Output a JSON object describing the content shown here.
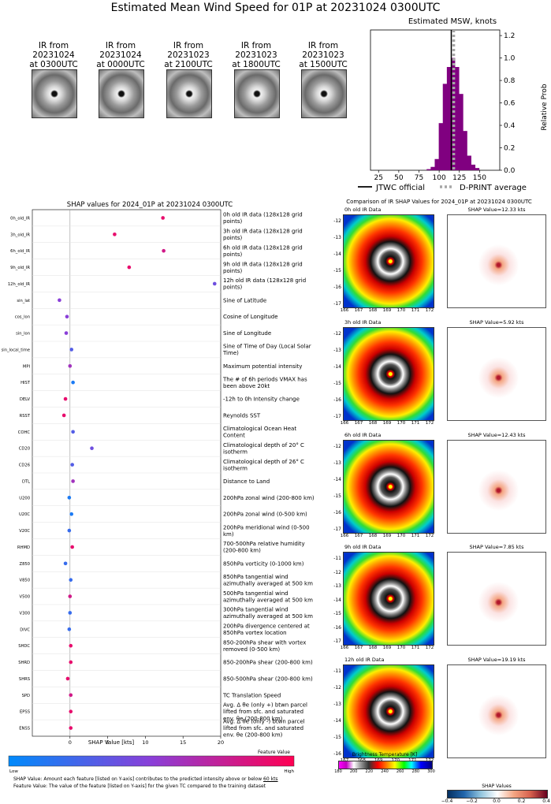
{
  "title": "Estimated Mean Wind Speed for 01P at 20231024 0300UTC",
  "ir_thumbs": [
    {
      "line1": "IR from",
      "line2": "20231024",
      "line3": "at 0300UTC"
    },
    {
      "line1": "IR from",
      "line2": "20231024",
      "line3": "at 0000UTC"
    },
    {
      "line1": "IR from",
      "line2": "20231023",
      "line3": "at 2100UTC"
    },
    {
      "line1": "IR from",
      "line2": "20231023",
      "line3": "at 1800UTC"
    },
    {
      "line1": "IR from",
      "line2": "20231023",
      "line3": "at 1500UTC"
    }
  ],
  "colors": {
    "purple": "#800080",
    "shap_blue": "#1e88e5",
    "shap_pink": "#ff0d57",
    "gray_dots": "#a6a6a6"
  },
  "chart_data": [
    {
      "type": "bar",
      "title": "Estimated MSW, knots",
      "ylabel": "Relative Prob",
      "xlim": [
        15,
        175
      ],
      "ylim": [
        0,
        1.25
      ],
      "x_ticks": [
        "25",
        "50",
        "75",
        "100",
        "125",
        "150"
      ],
      "y_ticks": [
        "0.0",
        "0.2",
        "0.4",
        "0.6",
        "0.8",
        "1.0",
        "1.2"
      ],
      "bin_centers": [
        87,
        92,
        97,
        102,
        107,
        112,
        117,
        122,
        127,
        132,
        137,
        142,
        147
      ],
      "values": [
        0.01,
        0.03,
        0.1,
        0.42,
        0.77,
        0.92,
        1.0,
        0.92,
        0.68,
        0.35,
        0.13,
        0.05,
        0.02
      ],
      "jtwc_official": 115,
      "dprint_average": 118,
      "legend": [
        "JTWC official",
        "D-PRINT average"
      ],
      "legend_placement": "bottom"
    },
    {
      "type": "scatter",
      "title": "SHAP values for 2024_01P at 20231024 0300UTC",
      "xlabel": "SHAP Value [kts]",
      "xlim": [
        -5,
        20
      ],
      "x_ticks": [
        "0",
        "5",
        "10",
        "15",
        "20"
      ],
      "colorbar_label": "Feature Value",
      "colorbar_low": "Low",
      "colorbar_high": "High",
      "features": [
        {
          "code": "0h_old_IR",
          "desc": "0h old IR data (128x128 grid points)",
          "shap": 12.33,
          "fv": 0.9
        },
        {
          "code": "3h_old_IR",
          "desc": "3h old IR data (128x128 grid points)",
          "shap": 5.92,
          "fv": 0.9
        },
        {
          "code": "6h_old_IR",
          "desc": "6h old IR data (128x128 grid points)",
          "shap": 12.43,
          "fv": 0.8
        },
        {
          "code": "9h_old_IR",
          "desc": "9h old IR data (128x128 grid points)",
          "shap": 7.85,
          "fv": 0.9
        },
        {
          "code": "12h_old_IR",
          "desc": "12h old IR data (128x128 grid points)",
          "shap": 19.19,
          "fv": 0.4
        },
        {
          "code": "sin_lat",
          "desc": "Sine of Latitude",
          "shap": -1.4,
          "fv": 0.5
        },
        {
          "code": "cos_lon",
          "desc": "Cosine of Longitude",
          "shap": -0.4,
          "fv": 0.5
        },
        {
          "code": "sin_lon",
          "desc": "Sine of Longitude",
          "shap": -0.5,
          "fv": 0.5
        },
        {
          "code": "sin_local_time",
          "desc": "Sine of Time of Day (Local Solar Time)",
          "shap": 0.2,
          "fv": 0.3
        },
        {
          "code": "MPI",
          "desc": "Maximum potential intensity",
          "shap": 0.0,
          "fv": 0.6
        },
        {
          "code": "HIST",
          "desc": "The # of 6h periods VMAX has been above 20kt",
          "shap": 0.4,
          "fv": 0.1
        },
        {
          "code": "DELV",
          "desc": "-12h to 0h Intensity change",
          "shap": -0.6,
          "fv": 0.9
        },
        {
          "code": "RSST",
          "desc": "Reynolds SST",
          "shap": -0.8,
          "fv": 0.9
        },
        {
          "code": "COHC",
          "desc": "Climatological Ocean Heat Content",
          "shap": 0.4,
          "fv": 0.3
        },
        {
          "code": "CD20",
          "desc": "Climatological depth of 20° C isotherm",
          "shap": 2.9,
          "fv": 0.4
        },
        {
          "code": "CD26",
          "desc": "Climatological depth of 26° C isotherm",
          "shap": 0.3,
          "fv": 0.3
        },
        {
          "code": "DTL",
          "desc": "Distance to Land",
          "shap": 0.4,
          "fv": 0.6
        },
        {
          "code": "U200",
          "desc": "200hPa zonal wind (200-800 km)",
          "shap": -0.1,
          "fv": 0.1
        },
        {
          "code": "U20C",
          "desc": "200hPa zonal wind (0-500 km)",
          "shap": 0.2,
          "fv": 0.1
        },
        {
          "code": "V20C",
          "desc": "200hPa meridional wind (0-500 km)",
          "shap": -0.1,
          "fv": 0.2
        },
        {
          "code": "RHMD",
          "desc": "700-500hPa relative humidity (200-800 km)",
          "shap": 0.3,
          "fv": 0.9
        },
        {
          "code": "Z850",
          "desc": "850hPa vorticity (0-1000 km)",
          "shap": -0.6,
          "fv": 0.2
        },
        {
          "code": "V850",
          "desc": "850hPa tangential wind azimuthally averaged at 500 km",
          "shap": 0.1,
          "fv": 0.2
        },
        {
          "code": "V500",
          "desc": "500hPa tangential wind azimuthally averaged at 500 km",
          "shap": 0.0,
          "fv": 0.8
        },
        {
          "code": "V300",
          "desc": "300hPa tangential wind azimuthally averaged at 500 km",
          "shap": 0.0,
          "fv": 0.2
        },
        {
          "code": "DIVC",
          "desc": "200hPa divergence centered at 850hPa vortex location",
          "shap": -0.1,
          "fv": 0.2
        },
        {
          "code": "SHDC",
          "desc": "850-200hPa shear with vortex removed (0-500 km)",
          "shap": 0.1,
          "fv": 0.9
        },
        {
          "code": "SHRD",
          "desc": "850-200hPa shear (200-800 km)",
          "shap": 0.1,
          "fv": 0.9
        },
        {
          "code": "SHRS",
          "desc": "850-500hPa shear (200-800 km)",
          "shap": -0.3,
          "fv": 0.9
        },
        {
          "code": "SPD",
          "desc": "TC Translation Speed",
          "shap": 0.1,
          "fv": 0.8
        },
        {
          "code": "EPSS",
          "desc": "Avg. Δ θe (only +) btwn parcel lifted from sfc. and saturated env. θe (200-800 km)",
          "shap": 0.1,
          "fv": 0.9
        },
        {
          "code": "ENSS",
          "desc": "Avg. Δ θe (only -) btwn parcel lifted from sfc. and saturated env. θe (200-800 km)",
          "shap": 0.1,
          "fv": 0.9
        }
      ]
    },
    {
      "type": "heatmap",
      "title": "Comparison of IR SHAP Values for 2024_01P at 20231024 0300UTC",
      "panels": [
        {
          "ir_title": "0h old IR Data",
          "shap_title": "SHAP Value=12.33 kts",
          "yticks": [
            "-12",
            "-13",
            "-14",
            "-15",
            "-16",
            "-17"
          ],
          "xticks": [
            "166",
            "167",
            "168",
            "169",
            "170",
            "171",
            "172"
          ]
        },
        {
          "ir_title": "3h old IR Data",
          "shap_title": "SHAP Value=5.92 kts",
          "yticks": [
            "-12",
            "-13",
            "-14",
            "-15",
            "-16",
            "-17"
          ],
          "xticks": [
            "166",
            "167",
            "168",
            "169",
            "170",
            "171",
            "172"
          ]
        },
        {
          "ir_title": "6h old IR Data",
          "shap_title": "SHAP Value=12.43 kts",
          "yticks": [
            "-12",
            "-13",
            "-14",
            "-15",
            "-16",
            "-17"
          ],
          "xticks": [
            "166",
            "167",
            "168",
            "169",
            "170",
            "171",
            "172"
          ]
        },
        {
          "ir_title": "9h old IR Data",
          "shap_title": "SHAP Value=7.85 kts",
          "yticks": [
            "-11",
            "-12",
            "-13",
            "-14",
            "-15",
            "-16",
            "-17"
          ],
          "xticks": [
            "166",
            "167",
            "168",
            "169",
            "170",
            "171",
            "172"
          ]
        },
        {
          "ir_title": "12h old IR Data",
          "shap_title": "SHAP Value=19.19 kts",
          "yticks": [
            "-11",
            "-12",
            "-13",
            "-14",
            "-15",
            "-16"
          ],
          "xticks": [
            "167",
            "168",
            "169",
            "170",
            "171",
            "172"
          ]
        }
      ],
      "bt_colorbar": {
        "label": "Brightness Temperature [K]",
        "ticks": [
          "180",
          "200",
          "220",
          "240",
          "260",
          "280",
          "300"
        ]
      },
      "shap_colorbar": {
        "label": "SHAP Values",
        "ticks": [
          "−0.4",
          "−0.2",
          "0.0",
          "0.2",
          "0.4"
        ]
      }
    }
  ],
  "footnotes": {
    "line1_pre": "SHAP Value: Amount each feature [listed on Y-axis] contributes to the predicted intensity above or below ",
    "line1_link": "60 kts",
    "line2": "Feature Value: The value of the feature [listed on Y-axis] for the given TC compared to the training dataset"
  }
}
